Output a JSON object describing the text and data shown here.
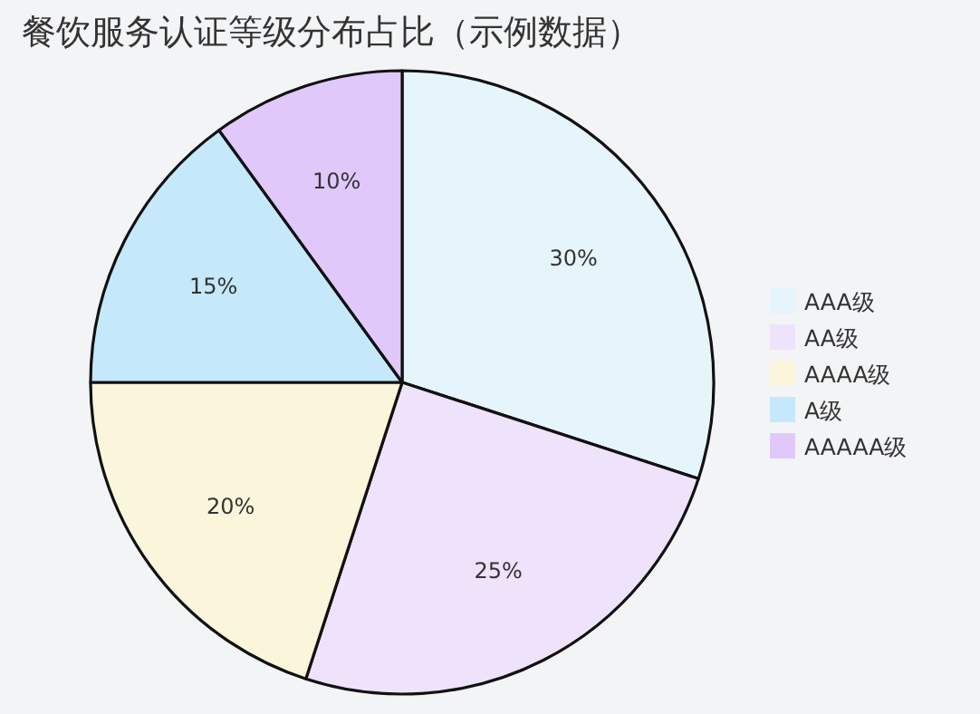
{
  "chart_data": {
    "type": "pie",
    "title": "餐饮服务认证等级分布占比（示例数据）",
    "categories": [
      "AAA级",
      "AA级",
      "AAAA级",
      "A级",
      "AAAAA级"
    ],
    "values": [
      30,
      25,
      20,
      15,
      10
    ],
    "colors": [
      "#e6f4fc",
      "#eee3fa",
      "#fbf5dc",
      "#c5e8fa",
      "#e0c8fb"
    ],
    "value_labels": [
      "30%",
      "25%",
      "20%",
      "15%",
      "10%"
    ],
    "legend": "right"
  }
}
